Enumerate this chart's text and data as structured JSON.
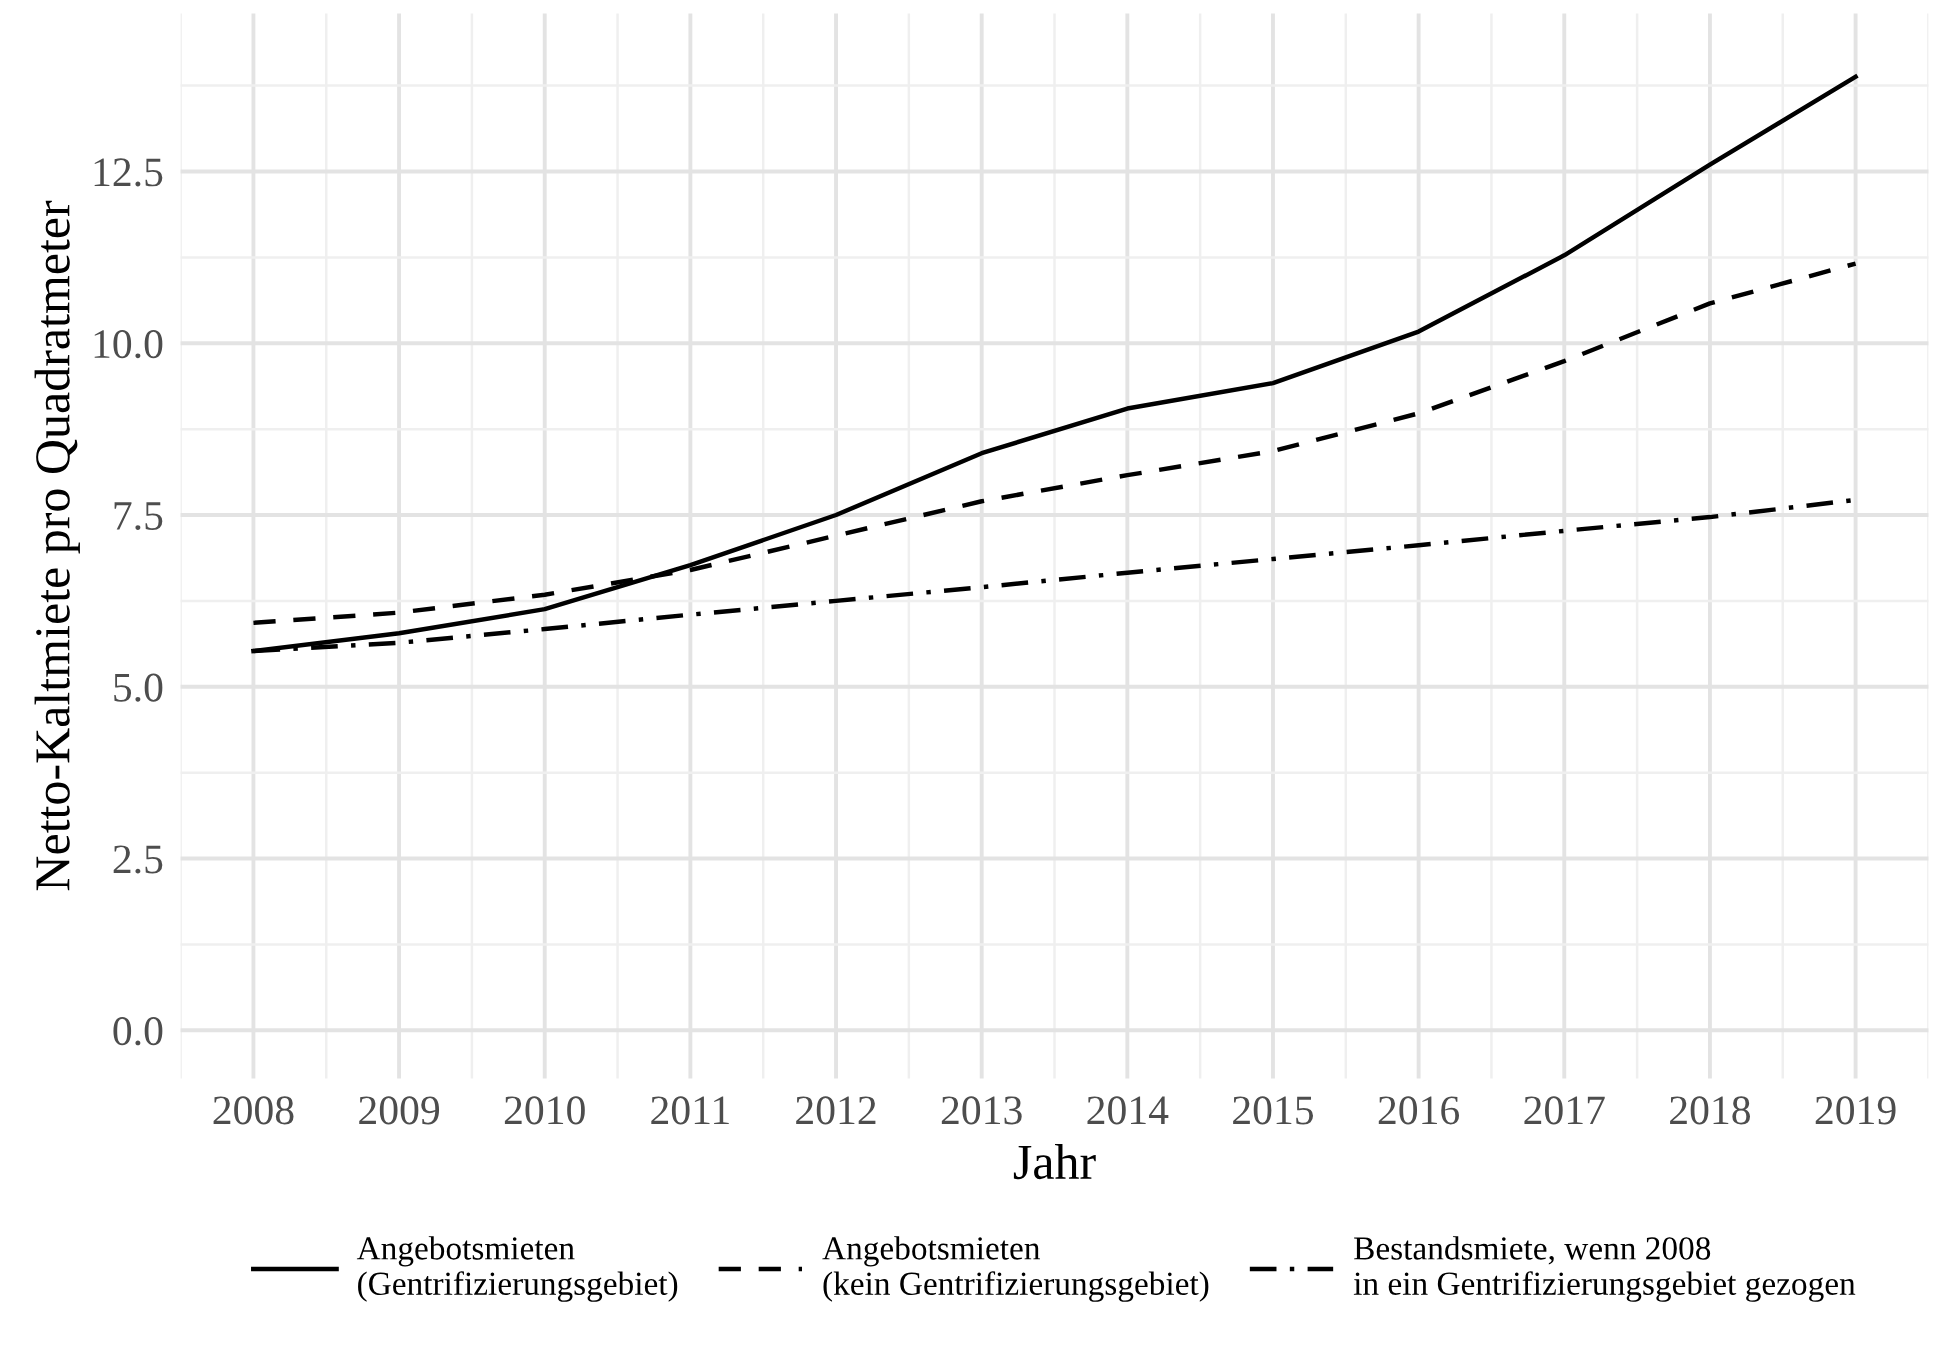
{
  "chart_data": {
    "type": "line",
    "xlabel": "Jahr",
    "ylabel": "Netto-Kaltmiete pro Quadratmeter",
    "x": [
      2008,
      2009,
      2010,
      2011,
      2012,
      2013,
      2014,
      2015,
      2016,
      2017,
      2018,
      2019
    ],
    "series": [
      {
        "name": "Angebotsmieten\n(Gentrifizierungsgebiet)",
        "color": "#000000",
        "line_style": "solid",
        "values": [
          5.52,
          5.78,
          6.13,
          6.77,
          7.5,
          8.4,
          9.05,
          9.42,
          10.17,
          11.28,
          12.6,
          13.88
        ]
      },
      {
        "name": "Angebotsmieten\n(kein Gentrifizierungsgebiet)",
        "color": "#000000",
        "line_style": "dashed",
        "values": [
          5.93,
          6.08,
          6.34,
          6.7,
          7.2,
          7.7,
          8.08,
          8.43,
          8.98,
          9.74,
          10.58,
          11.16
        ]
      },
      {
        "name": "Bestandsmiete, wenn 2008\nin ein Gentrifizierungsgebiet gezogen",
        "color": "#000000",
        "line_style": "dashdot",
        "values": [
          5.52,
          5.64,
          5.84,
          6.05,
          6.25,
          6.45,
          6.66,
          6.86,
          7.06,
          7.27,
          7.47,
          7.72
        ]
      }
    ],
    "xlim": [
      2007.5,
      2019.5
    ],
    "xticks": [
      2008,
      2009,
      2010,
      2011,
      2012,
      2013,
      2014,
      2015,
      2016,
      2017,
      2018,
      2019
    ],
    "ylim": [
      -0.7,
      14.8
    ],
    "yticks": [
      {
        "value": 0,
        "label": "0.0"
      },
      {
        "value": 2.5,
        "label": "2.5"
      },
      {
        "value": 5,
        "label": "5.0"
      },
      {
        "value": 7.5,
        "label": "7.5"
      },
      {
        "value": 10,
        "label": "10.0"
      },
      {
        "value": 12.5,
        "label": "12.5"
      }
    ],
    "grid": true,
    "legend": "bottom",
    "marker": "none"
  }
}
